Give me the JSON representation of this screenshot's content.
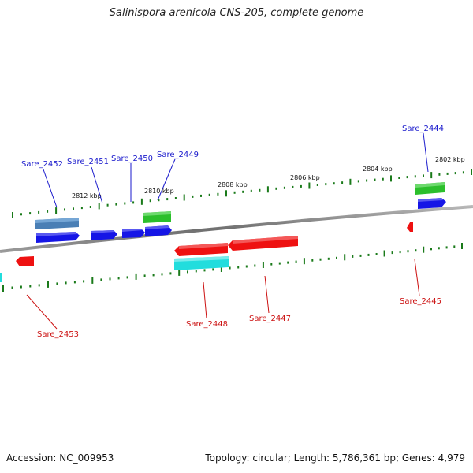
{
  "title": "Salinispora arenicola CNS-205, complete genome",
  "footer": {
    "accession": "Accession: NC_009953",
    "summary": "Topology: circular; Length: 5,786,361 bp; Genes: 4,979"
  },
  "ruler_labels": [
    "2812 kbp",
    "2810 kbp",
    "2808 kbp",
    "2806 kbp",
    "2804 kbp",
    "2802 kbp"
  ],
  "colors": {
    "forward_cds": "#1515e6",
    "reverse_cds": "#ee1111",
    "forward_rna": "#2bbf2b",
    "reverse_rna": "#22dddd",
    "other_feature": "#4a7fb5",
    "label_forward": "#1a1acc",
    "label_reverse": "#cc1111",
    "backbone": "#7a7a7a",
    "tick": "#1a7a1a"
  },
  "genes_forward": [
    "Sare_2452",
    "Sare_2451",
    "Sare_2450",
    "Sare_2449",
    "Sare_2444"
  ],
  "genes_reverse": [
    "Sare_2453",
    "Sare_2448",
    "Sare_2447",
    "Sare_2445"
  ]
}
